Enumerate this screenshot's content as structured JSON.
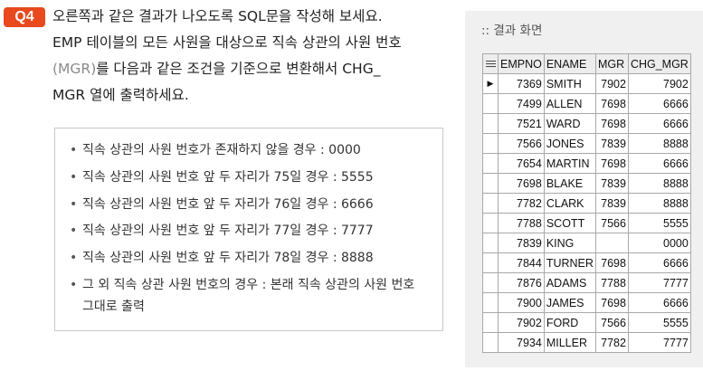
{
  "question": {
    "badge": "Q4",
    "line1": "오른쪽과 같은 결과가 나오도록 SQL문을 작성해 보세요.",
    "line2": "EMP 테이블의 모든 사원을 대상으로 직속 상관의 사원 번호",
    "line3_code": "(MGR)",
    "line3_rest": "를 다음과 같은 조건을 기준으로 변환해서 CHG_",
    "line4": "MGR 열에 출력하세요."
  },
  "conditions": [
    "직속 상관의 사원 번호가 존재하지 않을 경우 : 0000",
    "직속 상관의 사원 번호 앞 두 자리가 75일 경우 : 5555",
    "직속 상관의 사원 번호 앞 두 자리가 76일 경우 : 6666",
    "직속 상관의 사원 번호 앞 두 자리가 77일 경우 : 7777",
    "직속 상관의 사원 번호 앞 두 자리가 78일 경우 : 8888",
    "그 외 직속 상관 사원 번호의 경우 : 본래 직속 상관의 사원 번호 그대로 출력"
  ],
  "result": {
    "title": ":: 결과 화면",
    "columns": [
      "EMPNO",
      "ENAME",
      "MGR",
      "CHG_MGR"
    ],
    "current_row_marker": "▶",
    "rows": [
      [
        "7369",
        "SMITH",
        "7902",
        "7902"
      ],
      [
        "7499",
        "ALLEN",
        "7698",
        "6666"
      ],
      [
        "7521",
        "WARD",
        "7698",
        "6666"
      ],
      [
        "7566",
        "JONES",
        "7839",
        "8888"
      ],
      [
        "7654",
        "MARTIN",
        "7698",
        "6666"
      ],
      [
        "7698",
        "BLAKE",
        "7839",
        "8888"
      ],
      [
        "7782",
        "CLARK",
        "7839",
        "8888"
      ],
      [
        "7788",
        "SCOTT",
        "7566",
        "5555"
      ],
      [
        "7839",
        "KING",
        "",
        "0000"
      ],
      [
        "7844",
        "TURNER",
        "7698",
        "6666"
      ],
      [
        "7876",
        "ADAMS",
        "7788",
        "7777"
      ],
      [
        "7900",
        "JAMES",
        "7698",
        "6666"
      ],
      [
        "7902",
        "FORD",
        "7566",
        "5555"
      ],
      [
        "7934",
        "MILLER",
        "7782",
        "7777"
      ]
    ]
  }
}
